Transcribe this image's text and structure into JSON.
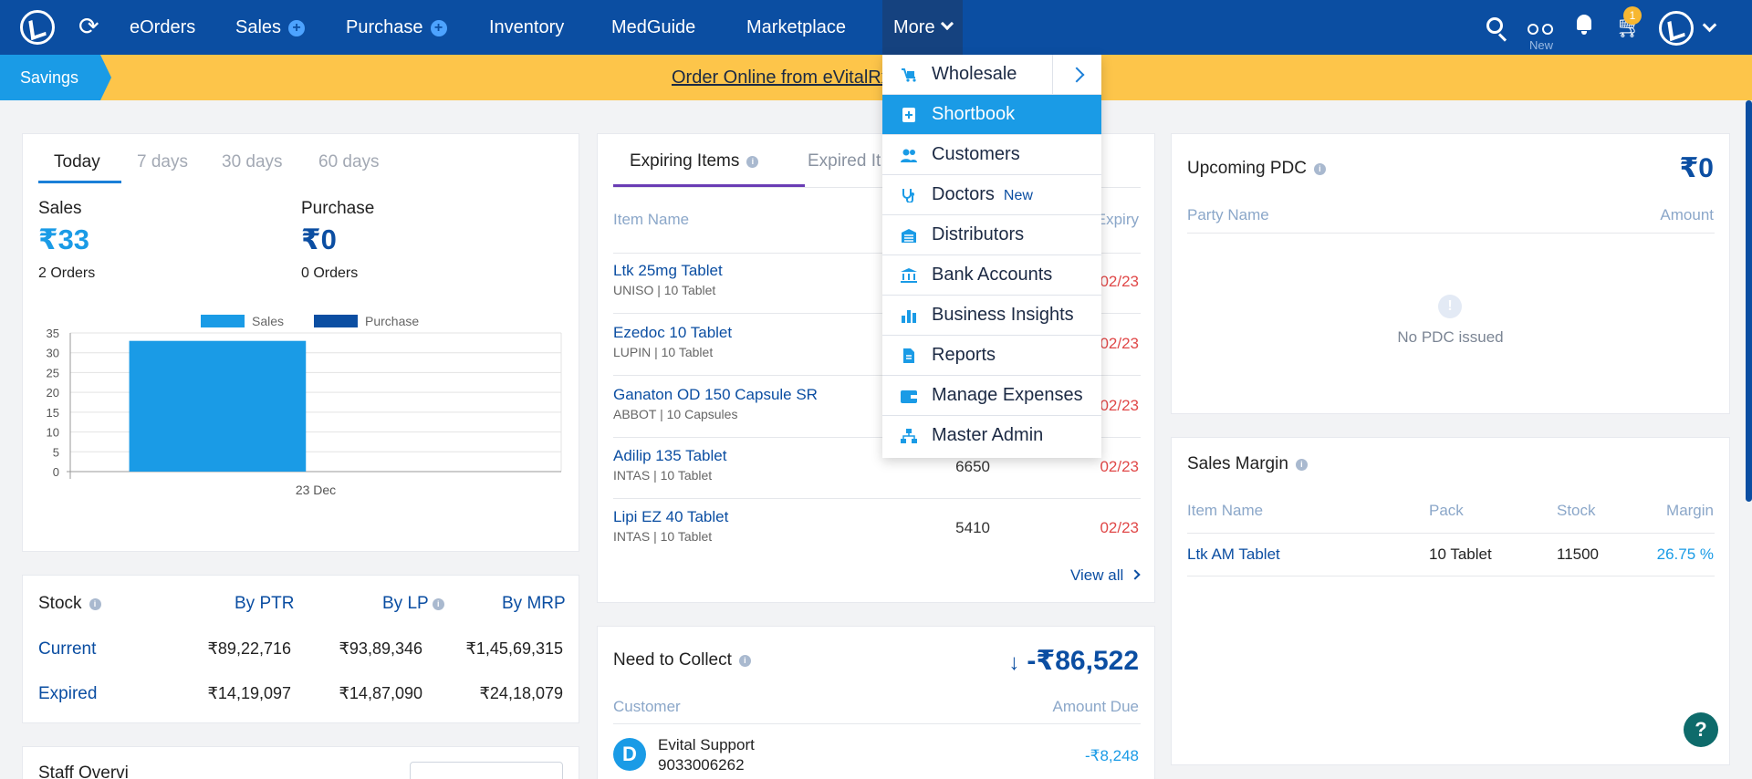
{
  "nav": {
    "items": [
      "eOrders",
      "Sales",
      "Purchase",
      "Inventory",
      "MedGuide",
      "Marketplace",
      "More"
    ],
    "new_label": "New",
    "cart_count": "1"
  },
  "banner": {
    "tag": "Savings",
    "message": "Order Online from eVitalRx ... purchases!"
  },
  "summary": {
    "tabs": [
      "Today",
      "7 days",
      "30 days",
      "60 days"
    ],
    "sales_label": "Sales",
    "sales_value": "₹33",
    "sales_orders": "2 Orders",
    "purchase_label": "Purchase",
    "purchase_value": "₹0",
    "purchase_orders": "0 Orders"
  },
  "chart_data": {
    "type": "bar",
    "categories": [
      "23 Dec"
    ],
    "series": [
      {
        "name": "Sales",
        "values": [
          33
        ]
      },
      {
        "name": "Purchase",
        "values": [
          0
        ]
      }
    ],
    "ylim": [
      0,
      35
    ],
    "yticks": [
      0,
      5,
      10,
      15,
      20,
      25,
      30,
      35
    ],
    "colors": [
      "#1a9be6",
      "#0b4ea2"
    ],
    "legend": "top"
  },
  "stock": {
    "title": "Stock",
    "cols": [
      "By PTR",
      "By LP",
      "By MRP"
    ],
    "rows": [
      {
        "label": "Current",
        "values": [
          "₹89,22,716",
          "₹93,89,346",
          "₹1,45,69,315"
        ]
      },
      {
        "label": "Expired",
        "values": [
          "₹14,19,097",
          "₹14,87,090",
          "₹24,18,079"
        ]
      }
    ]
  },
  "expiring": {
    "tab_active": "Expiring Items",
    "tab_other": "Expired It",
    "col_item": "Item Name",
    "col_expiry": "Expiry",
    "items": [
      {
        "name": "Ltk 25mg Tablet",
        "sub": "UNISO  |  10 Tablet",
        "qty": "",
        "exp": "02/23"
      },
      {
        "name": "Ezedoc 10 Tablet",
        "sub": "LUPIN  |  10 Tablet",
        "qty": "",
        "exp": "02/23"
      },
      {
        "name": "Ganaton OD 150 Capsule SR",
        "sub": "ABBOT  |  10 Capsules",
        "qty": "",
        "exp": "02/23"
      },
      {
        "name": "Adilip 135 Tablet",
        "sub": "INTAS  |  10 Tablet",
        "qty": "6650",
        "exp": "02/23"
      },
      {
        "name": "Lipi EZ 40 Tablet",
        "sub": "INTAS  |  10 Tablet",
        "qty": "5410",
        "exp": "02/23"
      }
    ],
    "view_all": "View all"
  },
  "collect": {
    "title": "Need to Collect",
    "total": "-₹86,522",
    "col_customer": "Customer",
    "col_amount": "Amount Due",
    "row_initial": "D",
    "row_name": "Evital Support",
    "row_phone": "9033006262",
    "row_amount": "-₹8,248"
  },
  "pdc": {
    "title": "Upcoming PDC",
    "total": "₹0",
    "col_party": "Party Name",
    "col_amount": "Amount",
    "empty": "No PDC issued"
  },
  "margin": {
    "title": "Sales Margin",
    "cols": [
      "Item Name",
      "Pack",
      "Stock",
      "Margin"
    ],
    "row": [
      "Ltk AM Tablet",
      "10 Tablet",
      "11500",
      "26.75 %"
    ]
  },
  "staff": {
    "title": "Staff Overvi"
  },
  "dropdown": {
    "items": [
      {
        "label": "Wholesale",
        "icon": "wholesale-icon"
      },
      {
        "label": "Shortbook",
        "icon": "shortbook-icon"
      },
      {
        "label": "Customers",
        "icon": "customers-icon"
      },
      {
        "label": "Doctors",
        "icon": "stethoscope-icon",
        "badge": "New"
      },
      {
        "label": "Distributors",
        "icon": "distributors-icon"
      },
      {
        "label": "Bank Accounts",
        "icon": "bank-icon"
      },
      {
        "label": "Business Insights",
        "icon": "chart-icon"
      },
      {
        "label": "Reports",
        "icon": "reports-icon"
      },
      {
        "label": "Manage Expenses",
        "icon": "wallet-icon"
      },
      {
        "label": "Master Admin",
        "icon": "admin-icon"
      }
    ]
  },
  "help": "?"
}
